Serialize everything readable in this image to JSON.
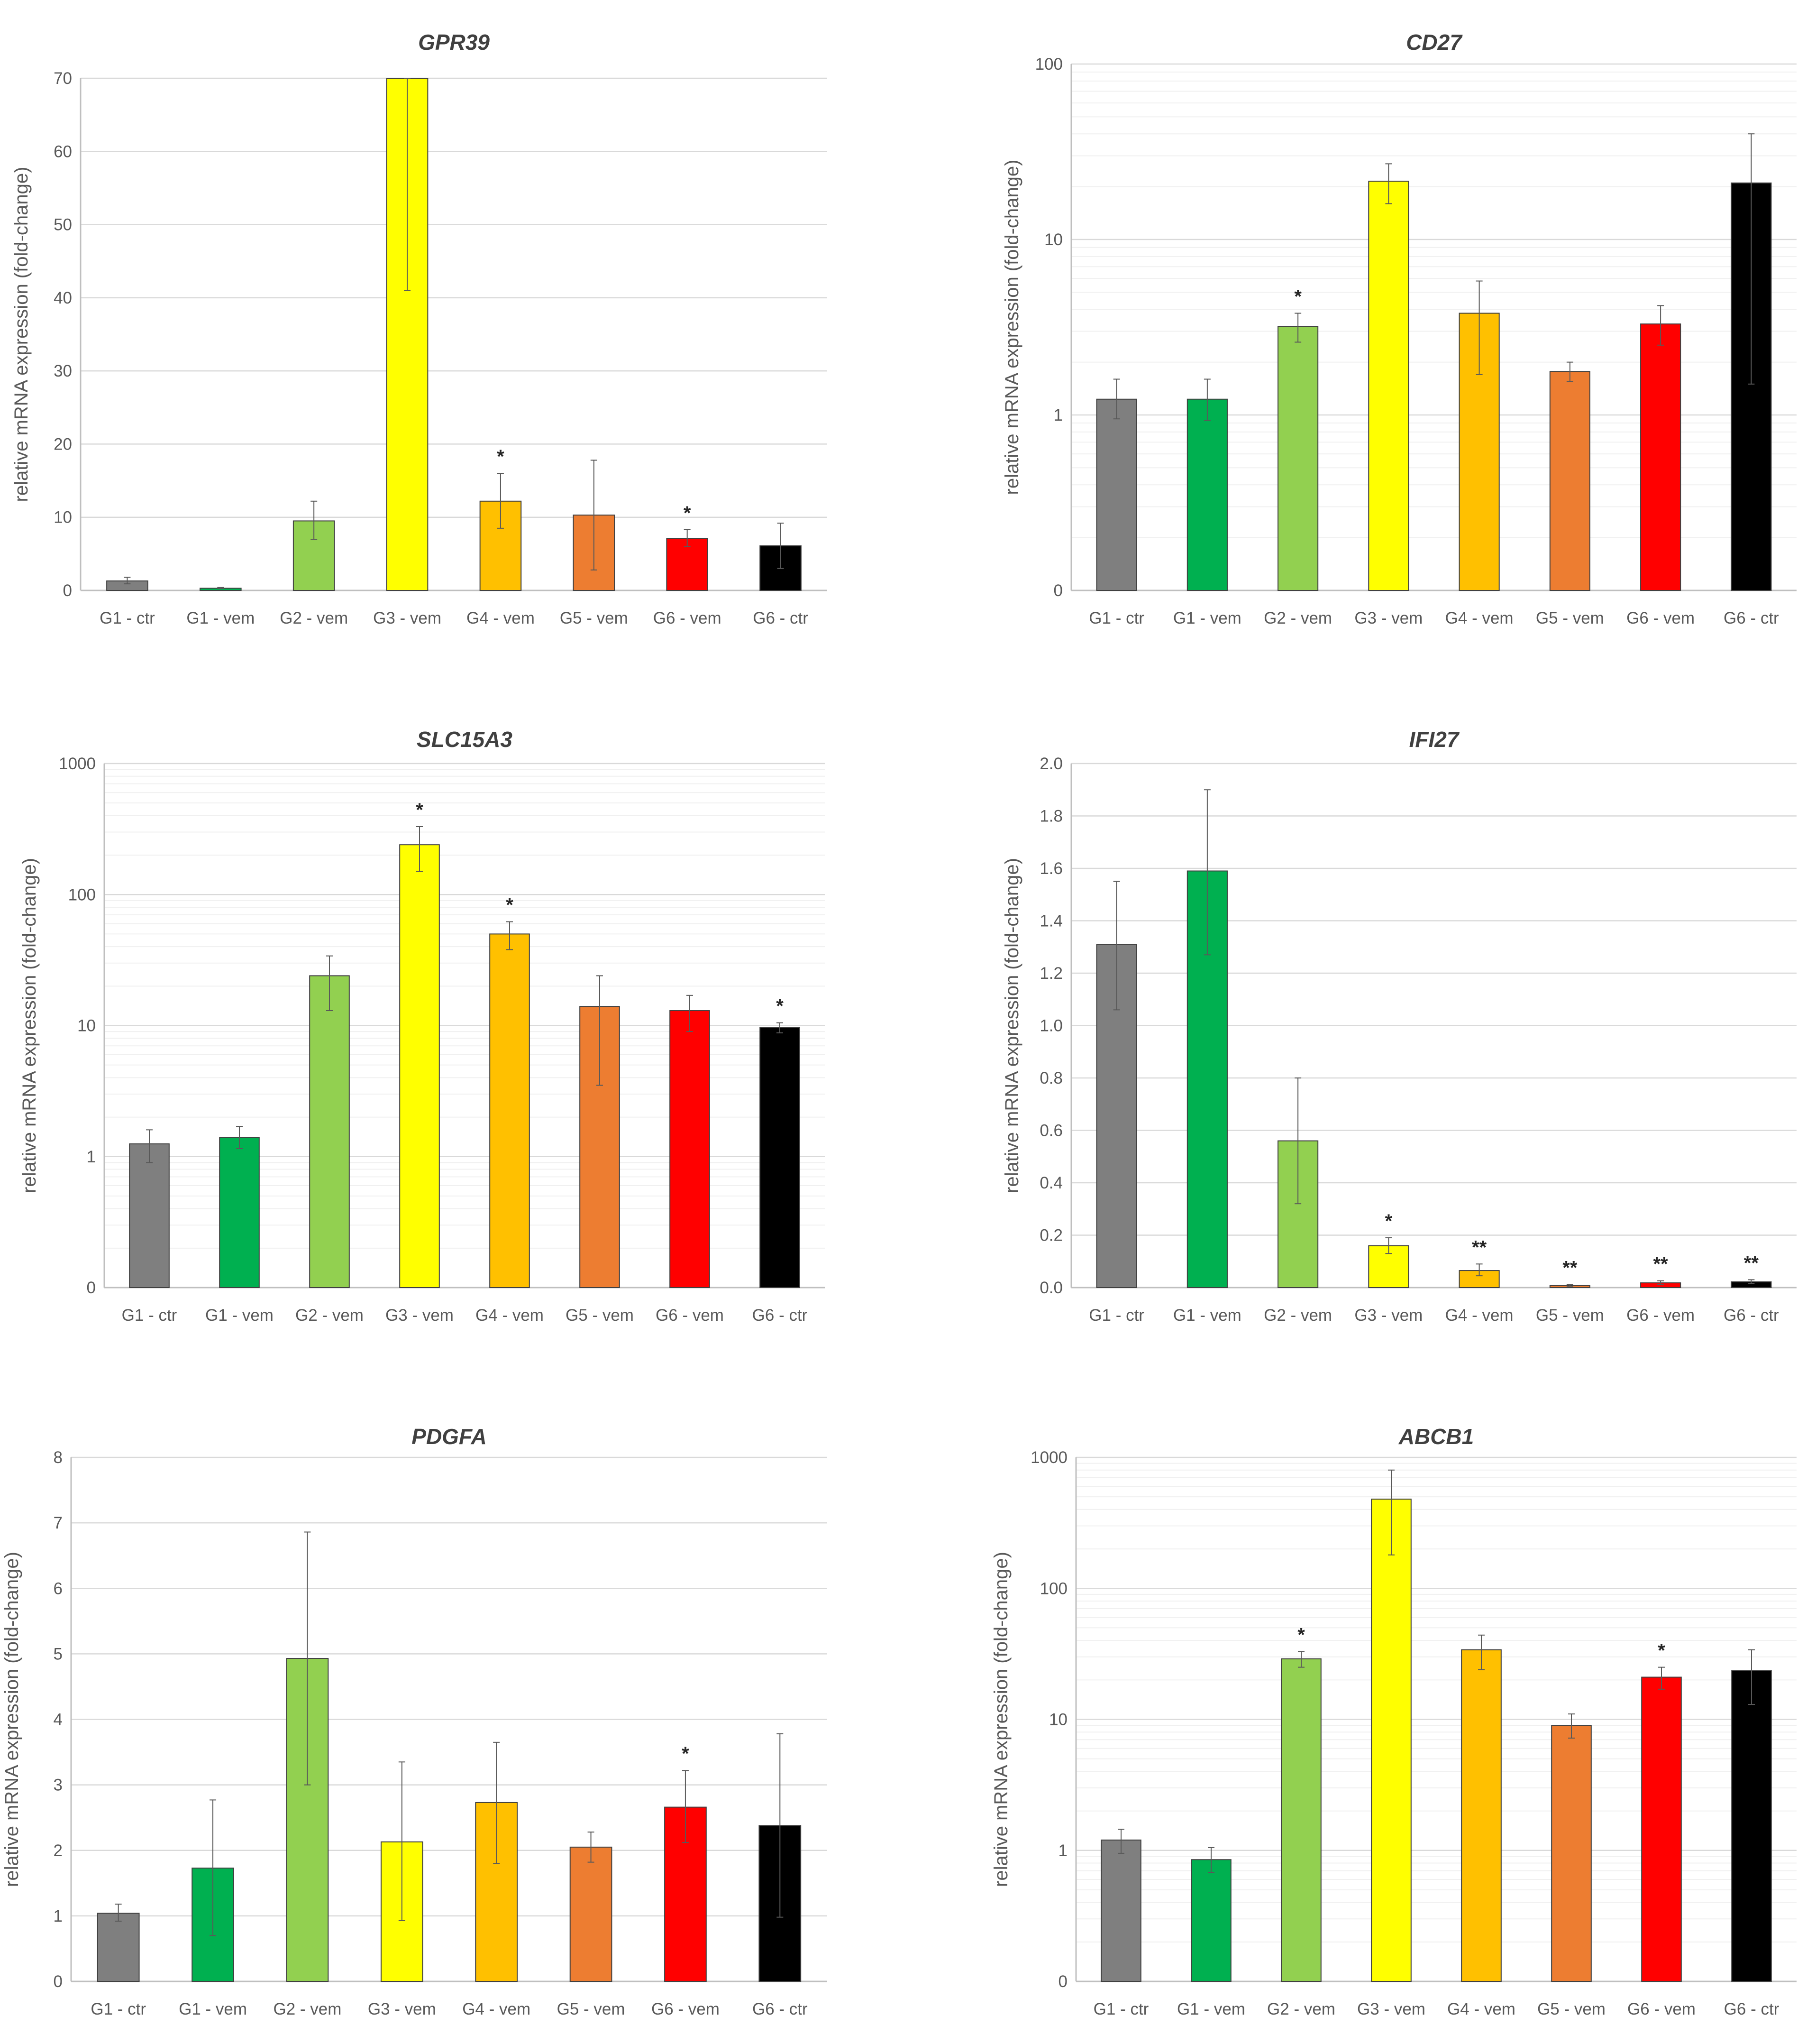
{
  "chart_data": [
    {
      "type": "bar",
      "title": "GPR39",
      "scale": "linear",
      "ylabel": "relative mRNA expression (fold-change)",
      "xlabel": "",
      "ylim": [
        0,
        70
      ],
      "yticks": [
        0,
        10,
        20,
        30,
        40,
        50,
        60,
        70
      ],
      "ytick_labels": [
        "0",
        "10",
        "20",
        "30",
        "40",
        "50",
        "60",
        "70"
      ],
      "categories": [
        "G1 - ctr",
        "G1 - vem",
        "G2 - vem",
        "G3 - vem",
        "G4 - vem",
        "G5 - vem",
        "G6 - vem",
        "G6 - ctr"
      ],
      "colors": [
        "#7f7f7f",
        "#00b050",
        "#92d050",
        "#ffff00",
        "#ffc000",
        "#ed7d31",
        "#ff0000",
        "#000000"
      ],
      "values": [
        1.3,
        0.3,
        9.5,
        70,
        12.2,
        10.3,
        7.1,
        6.1
      ],
      "err_low": [
        0.9,
        0.25,
        7,
        41,
        8.5,
        2.8,
        6,
        3
      ],
      "err_high": [
        1.8,
        0.4,
        12.2,
        70,
        16,
        17.8,
        8.3,
        9.2
      ],
      "significance": [
        "",
        "",
        "",
        "",
        "*",
        "",
        "*",
        ""
      ],
      "grid": true
    },
    {
      "type": "bar",
      "title": "CD27",
      "scale": "log",
      "ylabel": "relative mRNA expression (fold-change)",
      "xlabel": "",
      "ylim": [
        0.1,
        100
      ],
      "yticks": [
        0.1,
        1,
        10,
        100
      ],
      "ytick_labels": [
        "0",
        "1",
        "10",
        "100"
      ],
      "categories": [
        "G1 - ctr",
        "G1 - vem",
        "G2 - vem",
        "G3 - vem",
        "G4 - vem",
        "G5 - vem",
        "G6 - vem",
        "G6 - ctr"
      ],
      "colors": [
        "#7f7f7f",
        "#00b050",
        "#92d050",
        "#ffff00",
        "#ffc000",
        "#ed7d31",
        "#ff0000",
        "#000000"
      ],
      "values": [
        1.23,
        1.23,
        3.2,
        21.5,
        3.8,
        1.77,
        3.3,
        21
      ],
      "err_low": [
        0.95,
        0.93,
        2.6,
        16,
        1.7,
        1.55,
        2.5,
        1.5
      ],
      "err_high": [
        1.6,
        1.6,
        3.8,
        27,
        5.8,
        2.0,
        4.2,
        40
      ],
      "significance": [
        "",
        "",
        "*",
        "",
        "",
        "",
        "",
        ""
      ],
      "grid": true
    },
    {
      "type": "bar",
      "title": "SLC15A3",
      "scale": "log",
      "ylabel": "relative mRNA expression (fold-change)",
      "xlabel": "",
      "ylim": [
        0.1,
        1000
      ],
      "yticks": [
        0.1,
        1,
        10,
        100,
        1000
      ],
      "ytick_labels": [
        "0",
        "1",
        "10",
        "100",
        "1000"
      ],
      "categories": [
        "G1 - ctr",
        "G1 - vem",
        "G2 - vem",
        "G3 - vem",
        "G4 - vem",
        "G5 - vem",
        "G6 - vem",
        "G6 - ctr"
      ],
      "colors": [
        "#7f7f7f",
        "#00b050",
        "#92d050",
        "#ffff00",
        "#ffc000",
        "#ed7d31",
        "#ff0000",
        "#000000"
      ],
      "values": [
        1.25,
        1.4,
        24,
        240,
        50,
        14,
        13,
        9.7
      ],
      "err_low": [
        0.9,
        1.15,
        13,
        150,
        38,
        3.5,
        9,
        8.8
      ],
      "err_high": [
        1.6,
        1.7,
        34,
        330,
        62,
        24,
        17,
        10.5
      ],
      "significance": [
        "",
        "",
        "",
        "*",
        "*",
        "",
        "",
        "*"
      ],
      "grid": true
    },
    {
      "type": "bar",
      "title": "IFI27",
      "scale": "linear",
      "ylabel": "relative mRNA expression (fold-change)",
      "xlabel": "",
      "ylim": [
        0,
        2.0
      ],
      "yticks": [
        0,
        0.2,
        0.4,
        0.6,
        0.8,
        1.0,
        1.2,
        1.4,
        1.6,
        1.8,
        2.0
      ],
      "ytick_labels": [
        "0.0",
        "0.2",
        "0.4",
        "0.6",
        "0.8",
        "1.0",
        "1.2",
        "1.4",
        "1.6",
        "1.8",
        "2.0"
      ],
      "categories": [
        "G1 - ctr",
        "G1 - vem",
        "G2 - vem",
        "G3 - vem",
        "G4 - vem",
        "G5 - vem",
        "G6 - vem",
        "G6 - ctr"
      ],
      "colors": [
        "#7f7f7f",
        "#00b050",
        "#92d050",
        "#ffff00",
        "#ffc000",
        "#ed7d31",
        "#ff0000",
        "#000000"
      ],
      "values": [
        1.31,
        1.59,
        0.56,
        0.16,
        0.065,
        0.008,
        0.018,
        0.022
      ],
      "err_low": [
        1.06,
        1.27,
        0.32,
        0.13,
        0.045,
        0.005,
        0.012,
        0.015
      ],
      "err_high": [
        1.55,
        1.9,
        0.8,
        0.19,
        0.09,
        0.012,
        0.026,
        0.03
      ],
      "significance": [
        "",
        "",
        "",
        "*",
        "**",
        "**",
        "**",
        "**"
      ],
      "grid": true
    },
    {
      "type": "bar",
      "title": "PDGFA",
      "scale": "linear",
      "ylabel": "relative mRNA expression (fold-change)",
      "xlabel": "",
      "ylim": [
        0,
        8
      ],
      "yticks": [
        0,
        1,
        2,
        3,
        4,
        5,
        6,
        7,
        8
      ],
      "ytick_labels": [
        "0",
        "1",
        "2",
        "3",
        "4",
        "5",
        "6",
        "7",
        "8"
      ],
      "categories": [
        "G1 - ctr",
        "G1 - vem",
        "G2 - vem",
        "G3 - vem",
        "G4 - vem",
        "G5 - vem",
        "G6 - vem",
        "G6 - ctr"
      ],
      "colors": [
        "#7f7f7f",
        "#00b050",
        "#92d050",
        "#ffff00",
        "#ffc000",
        "#ed7d31",
        "#ff0000",
        "#000000"
      ],
      "values": [
        1.04,
        1.73,
        4.93,
        2.13,
        2.73,
        2.05,
        2.66,
        2.38
      ],
      "err_low": [
        0.92,
        0.7,
        3.0,
        0.93,
        1.8,
        1.82,
        2.12,
        0.98
      ],
      "err_high": [
        1.18,
        2.77,
        6.86,
        3.35,
        3.65,
        2.28,
        3.22,
        3.78
      ],
      "significance": [
        "",
        "",
        "",
        "",
        "",
        "",
        "*",
        ""
      ],
      "grid": true
    },
    {
      "type": "bar",
      "title": "ABCB1",
      "scale": "log",
      "ylabel": "relative mRNA expression (fold-change)",
      "xlabel": "",
      "ylim": [
        0.1,
        1000
      ],
      "yticks": [
        0.1,
        1,
        10,
        100,
        1000
      ],
      "ytick_labels": [
        "0",
        "1",
        "10",
        "100",
        "1000"
      ],
      "categories": [
        "G1 - ctr",
        "G1 - vem",
        "G2 - vem",
        "G3 - vem",
        "G4 - vem",
        "G5 - vem",
        "G6 - vem",
        "G6 - ctr"
      ],
      "colors": [
        "#7f7f7f",
        "#00b050",
        "#92d050",
        "#ffff00",
        "#ffc000",
        "#ed7d31",
        "#ff0000",
        "#000000"
      ],
      "values": [
        1.2,
        0.85,
        29,
        480,
        34,
        9,
        21,
        23.5
      ],
      "err_low": [
        0.95,
        0.68,
        25,
        180,
        24,
        7.2,
        17,
        13
      ],
      "err_high": [
        1.45,
        1.05,
        33,
        800,
        44,
        11,
        25,
        34
      ],
      "significance": [
        "",
        "",
        "*",
        "",
        "",
        "",
        "*",
        ""
      ],
      "grid": true
    }
  ]
}
